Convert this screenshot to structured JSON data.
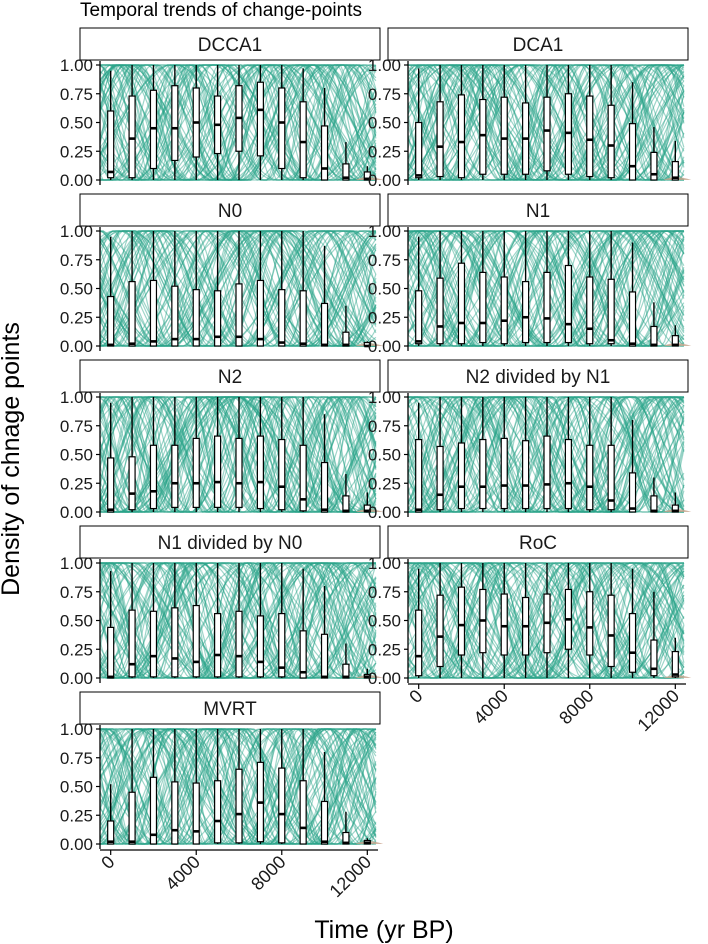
{
  "chart_data": {
    "type": "boxplot",
    "title": "Temporal trends of change-points",
    "xlabel": "Time (yr BP)",
    "ylabel": "Density of chnage points",
    "x_ticks": [
      0,
      4000,
      8000,
      12000
    ],
    "y_ticks": [
      "0.00",
      "0.25",
      "0.50",
      "0.75",
      "1.00"
    ],
    "x_range": [
      -500,
      12500
    ],
    "ylim": [
      0,
      1
    ],
    "bin_times": [
      0,
      1000,
      2000,
      3000,
      4000,
      5000,
      6000,
      7000,
      8000,
      9000,
      10000,
      11000,
      12000
    ],
    "colors": {
      "curves": "#2aa58a",
      "box_outline": "#000000",
      "box_fill": "#ffffff",
      "density": "#c9a58d",
      "strip_fill": "#ffffff"
    },
    "panels": [
      {
        "label": "DCCA1",
        "boxes": [
          {
            "q1": 0.02,
            "median": 0.07,
            "q3": 0.6,
            "lo": 0.0,
            "hi": 0.95
          },
          {
            "q1": 0.02,
            "median": 0.36,
            "q3": 0.73,
            "lo": 0.0,
            "hi": 1.0
          },
          {
            "q1": 0.1,
            "median": 0.45,
            "q3": 0.78,
            "lo": 0.0,
            "hi": 1.0
          },
          {
            "q1": 0.17,
            "median": 0.45,
            "q3": 0.82,
            "lo": 0.0,
            "hi": 1.0
          },
          {
            "q1": 0.2,
            "median": 0.5,
            "q3": 0.8,
            "lo": 0.0,
            "hi": 1.0
          },
          {
            "q1": 0.23,
            "median": 0.48,
            "q3": 0.73,
            "lo": 0.0,
            "hi": 1.0
          },
          {
            "q1": 0.25,
            "median": 0.54,
            "q3": 0.82,
            "lo": 0.0,
            "hi": 1.0
          },
          {
            "q1": 0.21,
            "median": 0.61,
            "q3": 0.85,
            "lo": 0.0,
            "hi": 1.0
          },
          {
            "q1": 0.1,
            "median": 0.5,
            "q3": 0.8,
            "lo": 0.0,
            "hi": 1.0
          },
          {
            "q1": 0.02,
            "median": 0.33,
            "q3": 0.68,
            "lo": 0.0,
            "hi": 0.97
          },
          {
            "q1": 0.0,
            "median": 0.1,
            "q3": 0.47,
            "lo": 0.0,
            "hi": 0.8
          },
          {
            "q1": 0.0,
            "median": 0.02,
            "q3": 0.14,
            "lo": 0.0,
            "hi": 0.33
          },
          {
            "q1": 0.0,
            "median": 0.01,
            "q3": 0.07,
            "lo": 0.0,
            "hi": 0.12
          }
        ]
      },
      {
        "label": "DCA1",
        "boxes": [
          {
            "q1": 0.02,
            "median": 0.04,
            "q3": 0.5,
            "lo": 0.0,
            "hi": 0.97
          },
          {
            "q1": 0.03,
            "median": 0.29,
            "q3": 0.68,
            "lo": 0.0,
            "hi": 1.0
          },
          {
            "q1": 0.02,
            "median": 0.33,
            "q3": 0.74,
            "lo": 0.0,
            "hi": 1.0
          },
          {
            "q1": 0.05,
            "median": 0.39,
            "q3": 0.7,
            "lo": 0.0,
            "hi": 1.0
          },
          {
            "q1": 0.05,
            "median": 0.36,
            "q3": 0.72,
            "lo": 0.0,
            "hi": 1.0
          },
          {
            "q1": 0.05,
            "median": 0.36,
            "q3": 0.67,
            "lo": 0.0,
            "hi": 1.0
          },
          {
            "q1": 0.08,
            "median": 0.43,
            "q3": 0.72,
            "lo": 0.0,
            "hi": 1.0
          },
          {
            "q1": 0.05,
            "median": 0.41,
            "q3": 0.75,
            "lo": 0.0,
            "hi": 1.0
          },
          {
            "q1": 0.03,
            "median": 0.35,
            "q3": 0.73,
            "lo": 0.0,
            "hi": 1.0
          },
          {
            "q1": 0.02,
            "median": 0.3,
            "q3": 0.65,
            "lo": 0.0,
            "hi": 1.0
          },
          {
            "q1": 0.0,
            "median": 0.12,
            "q3": 0.49,
            "lo": 0.0,
            "hi": 0.85
          },
          {
            "q1": 0.0,
            "median": 0.05,
            "q3": 0.24,
            "lo": 0.0,
            "hi": 0.46
          },
          {
            "q1": 0.0,
            "median": 0.02,
            "q3": 0.16,
            "lo": 0.0,
            "hi": 0.34
          }
        ]
      },
      {
        "label": "N0",
        "boxes": [
          {
            "q1": 0.0,
            "median": 0.01,
            "q3": 0.43,
            "lo": 0.0,
            "hi": 0.95
          },
          {
            "q1": 0.0,
            "median": 0.02,
            "q3": 0.56,
            "lo": 0.0,
            "hi": 1.0
          },
          {
            "q1": 0.0,
            "median": 0.04,
            "q3": 0.57,
            "lo": 0.0,
            "hi": 1.0
          },
          {
            "q1": 0.0,
            "median": 0.06,
            "q3": 0.52,
            "lo": 0.0,
            "hi": 1.0
          },
          {
            "q1": 0.0,
            "median": 0.06,
            "q3": 0.49,
            "lo": 0.0,
            "hi": 1.0
          },
          {
            "q1": 0.0,
            "median": 0.08,
            "q3": 0.48,
            "lo": 0.0,
            "hi": 1.0
          },
          {
            "q1": 0.0,
            "median": 0.08,
            "q3": 0.54,
            "lo": 0.0,
            "hi": 1.0
          },
          {
            "q1": 0.0,
            "median": 0.06,
            "q3": 0.57,
            "lo": 0.0,
            "hi": 1.0
          },
          {
            "q1": 0.0,
            "median": 0.03,
            "q3": 0.49,
            "lo": 0.0,
            "hi": 1.0
          },
          {
            "q1": 0.0,
            "median": 0.02,
            "q3": 0.48,
            "lo": 0.0,
            "hi": 1.0
          },
          {
            "q1": 0.0,
            "median": 0.01,
            "q3": 0.37,
            "lo": 0.0,
            "hi": 0.87
          },
          {
            "q1": 0.0,
            "median": 0.01,
            "q3": 0.12,
            "lo": 0.0,
            "hi": 0.35
          },
          {
            "q1": 0.0,
            "median": 0.0,
            "q3": 0.03,
            "lo": 0.0,
            "hi": 0.04
          }
        ]
      },
      {
        "label": "N1",
        "boxes": [
          {
            "q1": 0.02,
            "median": 0.04,
            "q3": 0.48,
            "lo": 0.0,
            "hi": 0.95
          },
          {
            "q1": 0.02,
            "median": 0.17,
            "q3": 0.59,
            "lo": 0.0,
            "hi": 1.0
          },
          {
            "q1": 0.02,
            "median": 0.2,
            "q3": 0.72,
            "lo": 0.0,
            "hi": 1.0
          },
          {
            "q1": 0.03,
            "median": 0.2,
            "q3": 0.64,
            "lo": 0.0,
            "hi": 1.0
          },
          {
            "q1": 0.02,
            "median": 0.22,
            "q3": 0.6,
            "lo": 0.0,
            "hi": 1.0
          },
          {
            "q1": 0.03,
            "median": 0.25,
            "q3": 0.56,
            "lo": 0.0,
            "hi": 1.0
          },
          {
            "q1": 0.03,
            "median": 0.24,
            "q3": 0.64,
            "lo": 0.0,
            "hi": 1.0
          },
          {
            "q1": 0.03,
            "median": 0.19,
            "q3": 0.7,
            "lo": 0.0,
            "hi": 1.0
          },
          {
            "q1": 0.02,
            "median": 0.15,
            "q3": 0.6,
            "lo": 0.0,
            "hi": 1.0
          },
          {
            "q1": 0.02,
            "median": 0.05,
            "q3": 0.58,
            "lo": 0.0,
            "hi": 1.0
          },
          {
            "q1": 0.0,
            "median": 0.02,
            "q3": 0.47,
            "lo": 0.0,
            "hi": 0.9
          },
          {
            "q1": 0.0,
            "median": 0.01,
            "q3": 0.17,
            "lo": 0.0,
            "hi": 0.38
          },
          {
            "q1": 0.0,
            "median": 0.01,
            "q3": 0.09,
            "lo": 0.0,
            "hi": 0.18
          }
        ]
      },
      {
        "label": "N2",
        "boxes": [
          {
            "q1": 0.0,
            "median": 0.02,
            "q3": 0.47,
            "lo": 0.0,
            "hi": 0.95
          },
          {
            "q1": 0.02,
            "median": 0.16,
            "q3": 0.48,
            "lo": 0.0,
            "hi": 1.0
          },
          {
            "q1": 0.03,
            "median": 0.18,
            "q3": 0.58,
            "lo": 0.0,
            "hi": 1.0
          },
          {
            "q1": 0.04,
            "median": 0.25,
            "q3": 0.58,
            "lo": 0.0,
            "hi": 1.0
          },
          {
            "q1": 0.04,
            "median": 0.25,
            "q3": 0.64,
            "lo": 0.0,
            "hi": 1.0
          },
          {
            "q1": 0.04,
            "median": 0.26,
            "q3": 0.66,
            "lo": 0.0,
            "hi": 1.0
          },
          {
            "q1": 0.04,
            "median": 0.25,
            "q3": 0.64,
            "lo": 0.0,
            "hi": 1.0
          },
          {
            "q1": 0.03,
            "median": 0.26,
            "q3": 0.66,
            "lo": 0.0,
            "hi": 1.0
          },
          {
            "q1": 0.02,
            "median": 0.22,
            "q3": 0.63,
            "lo": 0.0,
            "hi": 1.0
          },
          {
            "q1": 0.01,
            "median": 0.11,
            "q3": 0.58,
            "lo": 0.0,
            "hi": 1.0
          },
          {
            "q1": 0.0,
            "median": 0.02,
            "q3": 0.43,
            "lo": 0.0,
            "hi": 0.85
          },
          {
            "q1": 0.0,
            "median": 0.01,
            "q3": 0.14,
            "lo": 0.0,
            "hi": 0.33
          },
          {
            "q1": 0.0,
            "median": 0.01,
            "q3": 0.06,
            "lo": 0.0,
            "hi": 0.17
          }
        ]
      },
      {
        "label": "N2 divided by N1",
        "boxes": [
          {
            "q1": 0.0,
            "median": 0.02,
            "q3": 0.63,
            "lo": 0.0,
            "hi": 0.95
          },
          {
            "q1": 0.02,
            "median": 0.15,
            "q3": 0.57,
            "lo": 0.0,
            "hi": 1.0
          },
          {
            "q1": 0.03,
            "median": 0.22,
            "q3": 0.6,
            "lo": 0.0,
            "hi": 1.0
          },
          {
            "q1": 0.03,
            "median": 0.22,
            "q3": 0.63,
            "lo": 0.0,
            "hi": 1.0
          },
          {
            "q1": 0.03,
            "median": 0.23,
            "q3": 0.64,
            "lo": 0.0,
            "hi": 1.0
          },
          {
            "q1": 0.03,
            "median": 0.23,
            "q3": 0.62,
            "lo": 0.0,
            "hi": 1.0
          },
          {
            "q1": 0.03,
            "median": 0.24,
            "q3": 0.66,
            "lo": 0.0,
            "hi": 1.0
          },
          {
            "q1": 0.03,
            "median": 0.25,
            "q3": 0.63,
            "lo": 0.0,
            "hi": 1.0
          },
          {
            "q1": 0.02,
            "median": 0.22,
            "q3": 0.58,
            "lo": 0.0,
            "hi": 1.0
          },
          {
            "q1": 0.02,
            "median": 0.1,
            "q3": 0.58,
            "lo": 0.0,
            "hi": 1.0
          },
          {
            "q1": 0.0,
            "median": 0.03,
            "q3": 0.34,
            "lo": 0.0,
            "hi": 0.8
          },
          {
            "q1": 0.0,
            "median": 0.01,
            "q3": 0.14,
            "lo": 0.0,
            "hi": 0.3
          },
          {
            "q1": 0.0,
            "median": 0.01,
            "q3": 0.06,
            "lo": 0.0,
            "hi": 0.17
          }
        ]
      },
      {
        "label": "N1 divided by N0",
        "boxes": [
          {
            "q1": 0.0,
            "median": 0.01,
            "q3": 0.44,
            "lo": 0.0,
            "hi": 0.93
          },
          {
            "q1": 0.01,
            "median": 0.12,
            "q3": 0.59,
            "lo": 0.0,
            "hi": 1.0
          },
          {
            "q1": 0.01,
            "median": 0.19,
            "q3": 0.58,
            "lo": 0.0,
            "hi": 1.0
          },
          {
            "q1": 0.01,
            "median": 0.17,
            "q3": 0.61,
            "lo": 0.0,
            "hi": 1.0
          },
          {
            "q1": 0.01,
            "median": 0.14,
            "q3": 0.63,
            "lo": 0.0,
            "hi": 1.0
          },
          {
            "q1": 0.01,
            "median": 0.2,
            "q3": 0.56,
            "lo": 0.0,
            "hi": 1.0
          },
          {
            "q1": 0.01,
            "median": 0.19,
            "q3": 0.58,
            "lo": 0.0,
            "hi": 1.0
          },
          {
            "q1": 0.01,
            "median": 0.14,
            "q3": 0.54,
            "lo": 0.0,
            "hi": 1.0
          },
          {
            "q1": 0.01,
            "median": 0.09,
            "q3": 0.56,
            "lo": 0.0,
            "hi": 1.0
          },
          {
            "q1": 0.0,
            "median": 0.05,
            "q3": 0.41,
            "lo": 0.0,
            "hi": 0.95
          },
          {
            "q1": 0.0,
            "median": 0.01,
            "q3": 0.38,
            "lo": 0.0,
            "hi": 0.8
          },
          {
            "q1": 0.0,
            "median": 0.01,
            "q3": 0.12,
            "lo": 0.0,
            "hi": 0.3
          },
          {
            "q1": 0.0,
            "median": 0.01,
            "q3": 0.03,
            "lo": 0.0,
            "hi": 0.08
          }
        ]
      },
      {
        "label": "RoC",
        "boxes": [
          {
            "q1": 0.02,
            "median": 0.19,
            "q3": 0.59,
            "lo": 0.0,
            "hi": 0.95
          },
          {
            "q1": 0.1,
            "median": 0.36,
            "q3": 0.72,
            "lo": 0.0,
            "hi": 1.0
          },
          {
            "q1": 0.2,
            "median": 0.46,
            "q3": 0.79,
            "lo": 0.0,
            "hi": 1.0
          },
          {
            "q1": 0.22,
            "median": 0.5,
            "q3": 0.77,
            "lo": 0.0,
            "hi": 1.0
          },
          {
            "q1": 0.2,
            "median": 0.45,
            "q3": 0.73,
            "lo": 0.0,
            "hi": 1.0
          },
          {
            "q1": 0.2,
            "median": 0.45,
            "q3": 0.7,
            "lo": 0.0,
            "hi": 1.0
          },
          {
            "q1": 0.22,
            "median": 0.48,
            "q3": 0.73,
            "lo": 0.0,
            "hi": 1.0
          },
          {
            "q1": 0.25,
            "median": 0.51,
            "q3": 0.77,
            "lo": 0.0,
            "hi": 1.0
          },
          {
            "q1": 0.2,
            "median": 0.44,
            "q3": 0.75,
            "lo": 0.0,
            "hi": 1.0
          },
          {
            "q1": 0.1,
            "median": 0.37,
            "q3": 0.72,
            "lo": 0.0,
            "hi": 1.0
          },
          {
            "q1": 0.05,
            "median": 0.22,
            "q3": 0.56,
            "lo": 0.0,
            "hi": 0.95
          },
          {
            "q1": 0.02,
            "median": 0.08,
            "q3": 0.33,
            "lo": 0.0,
            "hi": 0.75
          },
          {
            "q1": 0.01,
            "median": 0.03,
            "q3": 0.23,
            "lo": 0.0,
            "hi": 0.35
          }
        ]
      },
      {
        "label": "MVRT",
        "boxes": [
          {
            "q1": 0.0,
            "median": 0.02,
            "q3": 0.2,
            "lo": 0.0,
            "hi": 0.52
          },
          {
            "q1": 0.0,
            "median": 0.02,
            "q3": 0.45,
            "lo": 0.0,
            "hi": 1.0
          },
          {
            "q1": 0.0,
            "median": 0.08,
            "q3": 0.58,
            "lo": 0.0,
            "hi": 1.0
          },
          {
            "q1": 0.0,
            "median": 0.12,
            "q3": 0.54,
            "lo": 0.0,
            "hi": 1.0
          },
          {
            "q1": 0.0,
            "median": 0.11,
            "q3": 0.53,
            "lo": 0.0,
            "hi": 1.0
          },
          {
            "q1": 0.01,
            "median": 0.2,
            "q3": 0.55,
            "lo": 0.0,
            "hi": 1.0
          },
          {
            "q1": 0.01,
            "median": 0.26,
            "q3": 0.65,
            "lo": 0.0,
            "hi": 1.0
          },
          {
            "q1": 0.02,
            "median": 0.36,
            "q3": 0.71,
            "lo": 0.0,
            "hi": 1.0
          },
          {
            "q1": 0.01,
            "median": 0.26,
            "q3": 0.66,
            "lo": 0.0,
            "hi": 1.0
          },
          {
            "q1": 0.0,
            "median": 0.14,
            "q3": 0.55,
            "lo": 0.0,
            "hi": 1.0
          },
          {
            "q1": 0.0,
            "median": 0.02,
            "q3": 0.37,
            "lo": 0.0,
            "hi": 0.8
          },
          {
            "q1": 0.0,
            "median": 0.01,
            "q3": 0.1,
            "lo": 0.0,
            "hi": 0.28
          },
          {
            "q1": 0.0,
            "median": 0.01,
            "q3": 0.03,
            "lo": 0.0,
            "hi": 0.05
          }
        ]
      }
    ]
  }
}
